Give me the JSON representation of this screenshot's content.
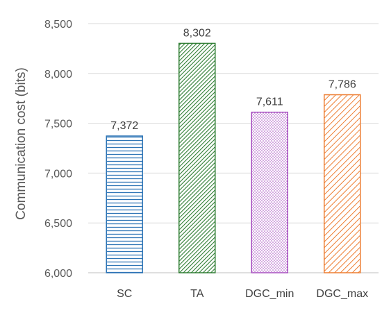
{
  "chart_data": {
    "type": "bar",
    "categories": [
      "SC",
      "TA",
      "DGC_min",
      "DGC_max"
    ],
    "values": [
      7372,
      8302,
      7611,
      7786
    ],
    "data_labels": [
      "7,372",
      "8,302",
      "7,611",
      "7,786"
    ],
    "ylabel": "Communication cost (bits)",
    "xlabel": "",
    "ylim": [
      6000,
      8500
    ],
    "yticks": [
      6000,
      6500,
      7000,
      7500,
      8000,
      8500
    ],
    "ytick_labels": [
      "6,000",
      "6,500",
      "7,000",
      "7,500",
      "8,000",
      "8,500"
    ],
    "grid": true,
    "legend": "none",
    "colors": [
      "#2e75b6",
      "#2e7d32",
      "#a64dbf",
      "#ed7d31"
    ],
    "patterns": [
      "horizontal-lines",
      "diagonal-dense",
      "dots",
      "diagonal-wide"
    ]
  }
}
